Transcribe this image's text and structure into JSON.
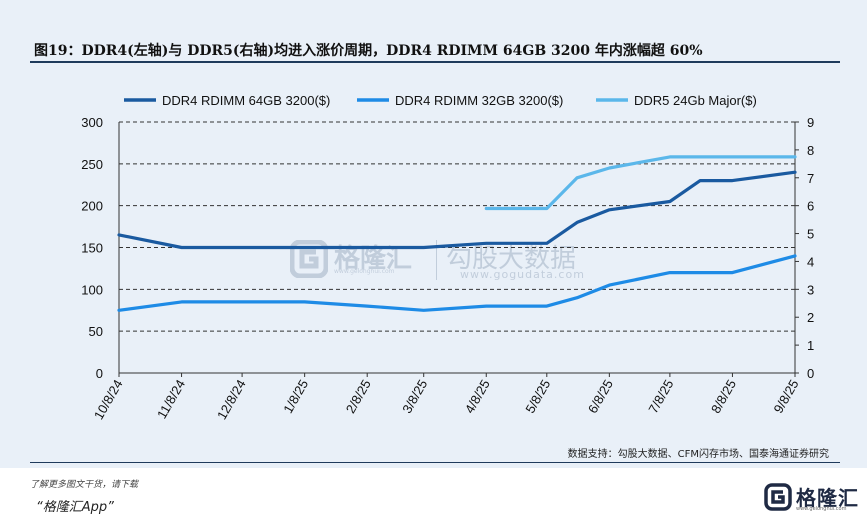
{
  "header": {
    "title": "图19：DDR4(左轴)与 DDR5(右轴)均进入涨价周期，DDR4 RDIMM 64GB 3200 年内涨幅超 60%"
  },
  "chart_data": {
    "type": "line",
    "categories": [
      "10/8/24",
      "11/8/24",
      "12/8/24",
      "1/8/25",
      "2/8/25",
      "3/8/25",
      "4/8/25",
      "5/8/25",
      "6/8/25",
      "7/8/25",
      "8/8/25",
      "9/8/25"
    ],
    "x_ticks": [
      "10/8/24",
      "11/8/24",
      "12/8/24",
      "1/8/25",
      "2/8/25",
      "3/8/25",
      "4/8/25",
      "5/8/25",
      "6/8/25",
      "7/8/25",
      "8/8/25",
      "9/8/25"
    ],
    "y_left": {
      "min": 0,
      "max": 300,
      "ticks": [
        "0",
        "50",
        "100",
        "150",
        "200",
        "250",
        "300"
      ]
    },
    "y_right": {
      "min": 0,
      "max": 9,
      "ticks": [
        "0",
        "1",
        "2",
        "3",
        "4",
        "5",
        "6",
        "7",
        "8",
        "9"
      ]
    },
    "grid": "horizontal dashed",
    "legend_position": "top",
    "series": [
      {
        "name": "DDR4 RDIMM 64GB 3200($)",
        "axis": "left",
        "color": "#1a5aa0",
        "points": [
          [
            "10/8/24",
            165
          ],
          [
            "11/8/24",
            150
          ],
          [
            "12/8/24",
            150
          ],
          [
            "1/8/25",
            150
          ],
          [
            "2/8/25",
            150
          ],
          [
            "3/8/25",
            150
          ],
          [
            "4/8/25",
            155
          ],
          [
            "5/8/25",
            155
          ],
          [
            "5/23/25",
            180
          ],
          [
            "6/8/25",
            195
          ],
          [
            "7/8/25",
            205
          ],
          [
            "7/23/25",
            230
          ],
          [
            "8/8/25",
            230
          ],
          [
            "9/8/25",
            240
          ]
        ]
      },
      {
        "name": "DDR4 RDIMM 32GB 3200($)",
        "axis": "left",
        "color": "#1e8be6",
        "points": [
          [
            "10/8/24",
            75
          ],
          [
            "11/8/24",
            85
          ],
          [
            "12/8/24",
            85
          ],
          [
            "1/8/25",
            85
          ],
          [
            "2/8/25",
            80
          ],
          [
            "3/8/25",
            75
          ],
          [
            "4/8/25",
            80
          ],
          [
            "5/8/25",
            80
          ],
          [
            "5/23/25",
            90
          ],
          [
            "6/8/25",
            105
          ],
          [
            "7/8/25",
            120
          ],
          [
            "8/8/25",
            120
          ],
          [
            "9/8/25",
            140
          ]
        ]
      },
      {
        "name": "DDR5 24Gb Major($)",
        "axis": "right",
        "color": "#5bb7ea",
        "points": [
          [
            "4/8/25",
            5.9
          ],
          [
            "5/8/25",
            5.9
          ],
          [
            "5/23/25",
            7.0
          ],
          [
            "6/8/25",
            7.35
          ],
          [
            "7/8/25",
            7.75
          ],
          [
            "8/8/25",
            7.75
          ],
          [
            "9/8/25",
            7.75
          ]
        ]
      }
    ]
  },
  "source": "数据支持：勾股大数据、CFM闪存市场、国泰海通证券研究",
  "footer": {
    "note": "了解更多图文干货，请下载",
    "app": "“格隆汇App”",
    "logo_text": "格隆汇",
    "logo_sub": "www.gelonghui.com"
  },
  "watermark": {
    "text1": "格隆汇",
    "url1": "www.gelonghui.com",
    "text2": "勾股大数据",
    "url2": "www.gogudata.com"
  }
}
